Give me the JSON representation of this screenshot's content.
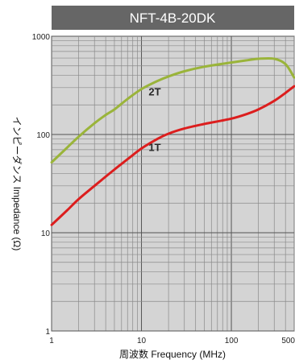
{
  "chart_data": {
    "type": "line",
    "title": "NFT-4B-20DK",
    "xlabel": "周波数 Frequency (MHz)",
    "ylabel": "インピーダンス Impedance (Ω)",
    "x_scale": "log",
    "y_scale": "log",
    "xlim": [
      1,
      500
    ],
    "ylim": [
      1,
      1000
    ],
    "x_ticks": [
      {
        "value": 1,
        "label": "1"
      },
      {
        "value": 10,
        "label": "10"
      },
      {
        "value": 100,
        "label": "100"
      },
      {
        "value": 500,
        "label": "500"
      }
    ],
    "y_ticks": [
      {
        "value": 1,
        "label": "1"
      },
      {
        "value": 10,
        "label": "10"
      },
      {
        "value": 100,
        "label": "100"
      },
      {
        "value": 1000,
        "label": "1000"
      }
    ],
    "grid": true,
    "background": "#d4d4d4",
    "title_bar_color": "#666666",
    "series": [
      {
        "name": "2T",
        "color": "#9ab43a",
        "label_at": [
          12,
          250
        ],
        "points": [
          [
            1,
            52
          ],
          [
            1.5,
            74
          ],
          [
            2,
            95
          ],
          [
            3,
            130
          ],
          [
            4,
            158
          ],
          [
            5,
            180
          ],
          [
            7,
            230
          ],
          [
            10,
            290
          ],
          [
            15,
            350
          ],
          [
            20,
            390
          ],
          [
            30,
            440
          ],
          [
            50,
            490
          ],
          [
            100,
            540
          ],
          [
            150,
            570
          ],
          [
            200,
            590
          ],
          [
            300,
            590
          ],
          [
            400,
            520
          ],
          [
            500,
            380
          ]
        ]
      },
      {
        "name": "1T",
        "color": "#dc1e1e",
        "label_at": [
          12,
          68
        ],
        "points": [
          [
            1,
            12
          ],
          [
            1.5,
            17
          ],
          [
            2,
            22
          ],
          [
            3,
            30
          ],
          [
            5,
            44
          ],
          [
            7,
            56
          ],
          [
            10,
            72
          ],
          [
            15,
            90
          ],
          [
            20,
            102
          ],
          [
            30,
            115
          ],
          [
            50,
            128
          ],
          [
            100,
            145
          ],
          [
            150,
            162
          ],
          [
            200,
            180
          ],
          [
            300,
            220
          ],
          [
            400,
            265
          ],
          [
            500,
            310
          ]
        ]
      }
    ]
  }
}
